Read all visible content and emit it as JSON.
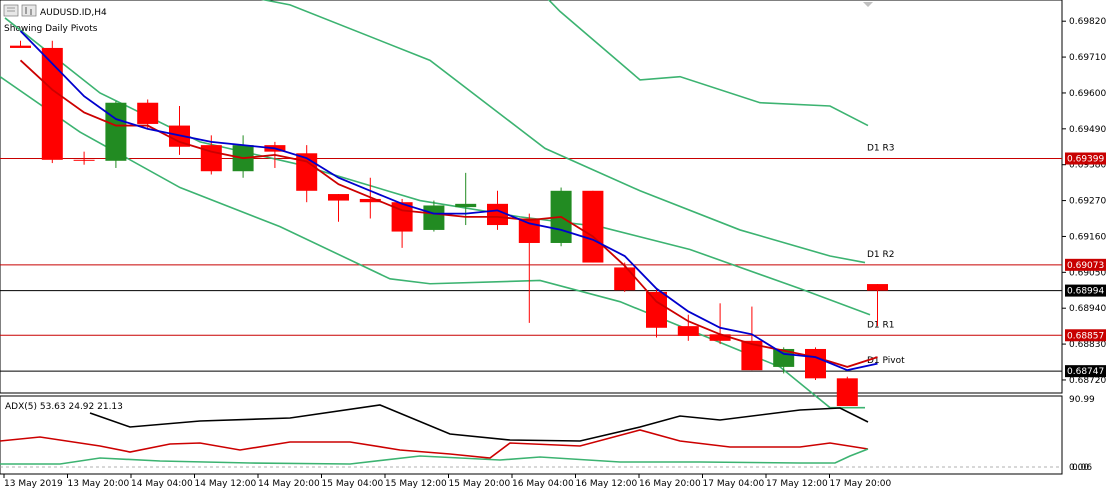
{
  "chart_data": {
    "type": "candlestick",
    "title": "AUDUSD.ID,H4",
    "subtitle": "Showing Daily Pivots",
    "y_axis_labels": [
      "0.69820",
      "0.69710",
      "0.69600",
      "0.69490",
      "0.69380",
      "0.69270",
      "0.69160",
      "0.69050",
      "0.68940",
      "0.68830",
      "0.68720"
    ],
    "y_range": [
      0.6868,
      0.69885
    ],
    "x_axis_labels": [
      "13 May 2019",
      "13 May 20:00",
      "14 May 04:00",
      "14 May 12:00",
      "14 May 20:00",
      "15 May 04:00",
      "15 May 12:00",
      "15 May 20:00",
      "16 May 04:00",
      "16 May 12:00",
      "16 May 20:00",
      "17 May 04:00",
      "17 May 12:00",
      "17 May 20:00"
    ],
    "candles": [
      {
        "o": 0.69745,
        "h": 0.6976,
        "l": 0.6974,
        "c": 0.69738
      },
      {
        "o": 0.69738,
        "h": 0.6976,
        "l": 0.69385,
        "c": 0.69395
      },
      {
        "o": 0.69395,
        "h": 0.6942,
        "l": 0.6938,
        "c": 0.69394
      },
      {
        "o": 0.69392,
        "h": 0.69575,
        "l": 0.6937,
        "c": 0.6957
      },
      {
        "o": 0.6957,
        "h": 0.6958,
        "l": 0.6949,
        "c": 0.69505
      },
      {
        "o": 0.695,
        "h": 0.6956,
        "l": 0.6941,
        "c": 0.69435
      },
      {
        "o": 0.6944,
        "h": 0.6947,
        "l": 0.6935,
        "c": 0.6936
      },
      {
        "o": 0.6936,
        "h": 0.6947,
        "l": 0.6934,
        "c": 0.6944
      },
      {
        "o": 0.6944,
        "h": 0.6945,
        "l": 0.6937,
        "c": 0.6942
      },
      {
        "o": 0.69415,
        "h": 0.6944,
        "l": 0.69265,
        "c": 0.693
      },
      {
        "o": 0.6929,
        "h": 0.6929,
        "l": 0.69205,
        "c": 0.6927
      },
      {
        "o": 0.69275,
        "h": 0.6934,
        "l": 0.69215,
        "c": 0.69265
      },
      {
        "o": 0.69265,
        "h": 0.69275,
        "l": 0.69125,
        "c": 0.69175
      },
      {
        "o": 0.6918,
        "h": 0.6927,
        "l": 0.69175,
        "c": 0.69255
      },
      {
        "o": 0.6925,
        "h": 0.69355,
        "l": 0.69195,
        "c": 0.6926
      },
      {
        "o": 0.6926,
        "h": 0.693,
        "l": 0.6918,
        "c": 0.69195
      },
      {
        "o": 0.69215,
        "h": 0.6923,
        "l": 0.68895,
        "c": 0.6914
      },
      {
        "o": 0.6914,
        "h": 0.6931,
        "l": 0.6913,
        "c": 0.693
      },
      {
        "o": 0.693,
        "h": 0.693,
        "l": 0.6908,
        "c": 0.6908
      },
      {
        "o": 0.69065,
        "h": 0.6908,
        "l": 0.6899,
        "c": 0.68995
      },
      {
        "o": 0.6899,
        "h": 0.69,
        "l": 0.6885,
        "c": 0.6888
      },
      {
        "o": 0.68885,
        "h": 0.6892,
        "l": 0.6884,
        "c": 0.68855
      },
      {
        "o": 0.6886,
        "h": 0.68955,
        "l": 0.6883,
        "c": 0.6884
      },
      {
        "o": 0.6884,
        "h": 0.68945,
        "l": 0.6875,
        "c": 0.6875
      },
      {
        "o": 0.6876,
        "h": 0.6882,
        "l": 0.6874,
        "c": 0.68815
      },
      {
        "o": 0.68815,
        "h": 0.6882,
        "l": 0.6872,
        "c": 0.68725
      },
      {
        "o": 0.68725,
        "h": 0.6873,
        "l": 0.6864,
        "c": 0.6864
      },
      {
        "o": 0.69014,
        "h": 0.69014,
        "l": 0.68885,
        "c": 0.68994
      }
    ],
    "ma_fast": [
      0.6979,
      0.6969,
      0.6959,
      0.6952,
      0.6949,
      0.6947,
      0.6945,
      0.6944,
      0.6943,
      0.694,
      0.6934,
      0.693,
      0.6926,
      0.6923,
      0.6923,
      0.6924,
      0.692,
      0.6918,
      0.6915,
      0.691,
      0.69,
      0.6893,
      0.6888,
      0.6886,
      0.688,
      0.6879,
      0.6875,
      0.6877
    ],
    "ma_slow": [
      0.697,
      0.6961,
      0.6954,
      0.695,
      0.695,
      0.6945,
      0.6942,
      0.694,
      0.6941,
      0.6939,
      0.6932,
      0.6928,
      0.6924,
      0.6923,
      0.6922,
      0.6922,
      0.6921,
      0.6922,
      0.6916,
      0.6907,
      0.6896,
      0.689,
      0.6886,
      0.6883,
      0.6881,
      0.6879,
      0.6876,
      0.6879
    ],
    "band_upper": [
      [
        20,
        0.7007
      ],
      [
        140,
        0.6996
      ],
      [
        290,
        0.6987
      ],
      [
        430,
        0.697
      ],
      [
        545,
        0.6943
      ],
      [
        640,
        0.693
      ],
      [
        740,
        0.6918
      ],
      [
        830,
        0.691
      ],
      [
        865,
        0.6908
      ]
    ],
    "band_mid": [
      [
        5,
        0.6983
      ],
      [
        100,
        0.696
      ],
      [
        200,
        0.6945
      ],
      [
        300,
        0.6938
      ],
      [
        420,
        0.6927
      ],
      [
        520,
        0.6922
      ],
      [
        600,
        0.6919
      ],
      [
        690,
        0.6912
      ],
      [
        800,
        0.69
      ],
      [
        870,
        0.6892
      ]
    ],
    "band_lower": [
      [
        0,
        0.6965
      ],
      [
        80,
        0.6948
      ],
      [
        180,
        0.6931
      ],
      [
        280,
        0.6919
      ],
      [
        390,
        0.6903
      ],
      [
        430,
        0.69015
      ],
      [
        540,
        0.69025
      ],
      [
        620,
        0.6896
      ],
      [
        700,
        0.6886
      ],
      [
        780,
        0.6876
      ],
      [
        830,
        0.68635
      ],
      [
        865,
        0.68635
      ]
    ],
    "band_upper_far": [
      [
        490,
        0.7007
      ],
      [
        560,
        0.6985
      ],
      [
        640,
        0.6964
      ],
      [
        680,
        0.6965
      ],
      [
        760,
        0.6957
      ],
      [
        830,
        0.6956
      ],
      [
        868,
        0.695
      ]
    ],
    "levels": [
      {
        "name": "D1 R3",
        "value": 0.69399,
        "label": "0.69399",
        "color": "#c80000"
      },
      {
        "name": "D1 R2",
        "value": 0.69073,
        "label": "0.69073",
        "color": "#c80000"
      },
      {
        "name": "D1 R1",
        "value": 0.68857,
        "label": "0.68857",
        "color": "#c80000"
      },
      {
        "name": "D1 Pivot",
        "value": 0.68747,
        "label": "0.68747",
        "color": "#000000"
      }
    ],
    "current_price": {
      "value": 0.68994,
      "label": "0.68994"
    },
    "indicator": {
      "label": "ADX(5) 53.63 24.92 21.13",
      "axis_labels": [
        "90.99",
        "0.00",
        "0.06"
      ],
      "adx_main": [
        [
          90,
          413
        ],
        [
          130,
          427
        ],
        [
          200,
          421
        ],
        [
          290,
          418
        ],
        [
          380,
          405
        ],
        [
          450,
          434
        ],
        [
          510,
          440
        ],
        [
          580,
          441
        ],
        [
          640,
          427
        ],
        [
          680,
          416
        ],
        [
          720,
          420
        ],
        [
          800,
          410
        ],
        [
          840,
          408
        ],
        [
          868,
          422
        ]
      ],
      "di_plus": [
        [
          0,
          441
        ],
        [
          40,
          437
        ],
        [
          100,
          446
        ],
        [
          130,
          452
        ],
        [
          170,
          444
        ],
        [
          200,
          443
        ],
        [
          240,
          450
        ],
        [
          290,
          442
        ],
        [
          350,
          442
        ],
        [
          400,
          450
        ],
        [
          450,
          454
        ],
        [
          490,
          458
        ],
        [
          510,
          443
        ],
        [
          580,
          446
        ],
        [
          640,
          430
        ],
        [
          680,
          441
        ],
        [
          730,
          447
        ],
        [
          800,
          447
        ],
        [
          830,
          443
        ],
        [
          868,
          449
        ]
      ],
      "di_minus": [
        [
          0,
          464
        ],
        [
          60,
          464
        ],
        [
          100,
          458
        ],
        [
          160,
          461
        ],
        [
          250,
          463
        ],
        [
          350,
          464
        ],
        [
          420,
          456
        ],
        [
          500,
          460
        ],
        [
          540,
          457
        ],
        [
          620,
          462
        ],
        [
          700,
          462
        ],
        [
          800,
          463
        ],
        [
          835,
          463
        ],
        [
          850,
          456
        ],
        [
          868,
          449
        ]
      ]
    },
    "colors": {
      "bull": "#228b22",
      "bear": "#ff0000",
      "ma_fast": "#0000cd",
      "ma_slow": "#cc0000",
      "bands": "#3cb371",
      "level": "#c80000",
      "adx": "#000000"
    }
  }
}
